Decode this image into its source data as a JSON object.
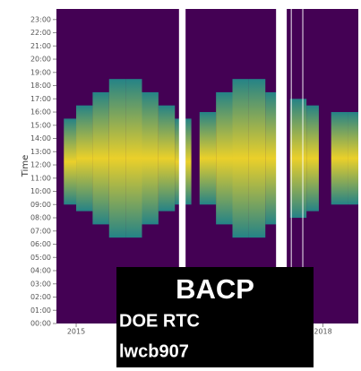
{
  "chart_data": {
    "type": "range-heatmap",
    "y_label": "Time",
    "x": [
      2014.85,
      2015.0,
      2015.2,
      2015.4,
      2015.6,
      2015.8,
      2016.0,
      2016.2,
      2016.4,
      2016.5,
      2016.7,
      2016.9,
      2017.1,
      2017.3,
      2017.5,
      2017.6,
      2017.8,
      2017.95,
      2018.1,
      2018.3
    ],
    "low": [
      9,
      8.5,
      7.5,
      6.5,
      6.5,
      7.5,
      8.5,
      9,
      null,
      9,
      7.5,
      6.5,
      6.5,
      7.5,
      null,
      8,
      8.5,
      null,
      9,
      9
    ],
    "high": [
      15.5,
      16.5,
      17.5,
      18.5,
      18.5,
      17.5,
      16.5,
      15.5,
      null,
      16,
      17.5,
      18.5,
      18.5,
      17.5,
      null,
      17,
      16.5,
      null,
      16,
      16
    ],
    "gaps": [
      [
        2016.25,
        2016.33
      ],
      [
        2017.43,
        2017.56
      ],
      [
        2017.61,
        2017.62
      ],
      [
        2017.75,
        2017.76
      ]
    ],
    "background_color": "#440154",
    "edge_color": "#21918c",
    "peak_color": "#fde725",
    "xlim": [
      2014.76,
      2018.43
    ],
    "xticks": [
      2015,
      2018
    ],
    "ylim": [
      0,
      23.8
    ],
    "yticks": [
      {
        "value": 0,
        "label": "00:00"
      },
      {
        "value": 1,
        "label": "01:00"
      },
      {
        "value": 2,
        "label": "02:00"
      },
      {
        "value": 3,
        "label": "03:00"
      },
      {
        "value": 4,
        "label": "04:00"
      },
      {
        "value": 5,
        "label": "05:00"
      },
      {
        "value": 6,
        "label": "06:00"
      },
      {
        "value": 7,
        "label": "07:00"
      },
      {
        "value": 8,
        "label": "08:00"
      },
      {
        "value": 9,
        "label": "09:00"
      },
      {
        "value": 10,
        "label": "10:00"
      },
      {
        "value": 11,
        "label": "11:00"
      },
      {
        "value": 12,
        "label": "12:00"
      },
      {
        "value": 13,
        "label": "13:00"
      },
      {
        "value": 14,
        "label": "14:00"
      },
      {
        "value": 15,
        "label": "15:00"
      },
      {
        "value": 16,
        "label": "16:00"
      },
      {
        "value": 17,
        "label": "17:00"
      },
      {
        "value": 18,
        "label": "18:00"
      },
      {
        "value": 19,
        "label": "19:00"
      },
      {
        "value": 20,
        "label": "20:00"
      },
      {
        "value": 21,
        "label": "21:00"
      },
      {
        "value": 22,
        "label": "22:00"
      },
      {
        "value": 23,
        "label": "23:00"
      }
    ],
    "overlay": {
      "title": "BACP",
      "line1": "DOE RTC",
      "line2": "lwcb907"
    }
  }
}
